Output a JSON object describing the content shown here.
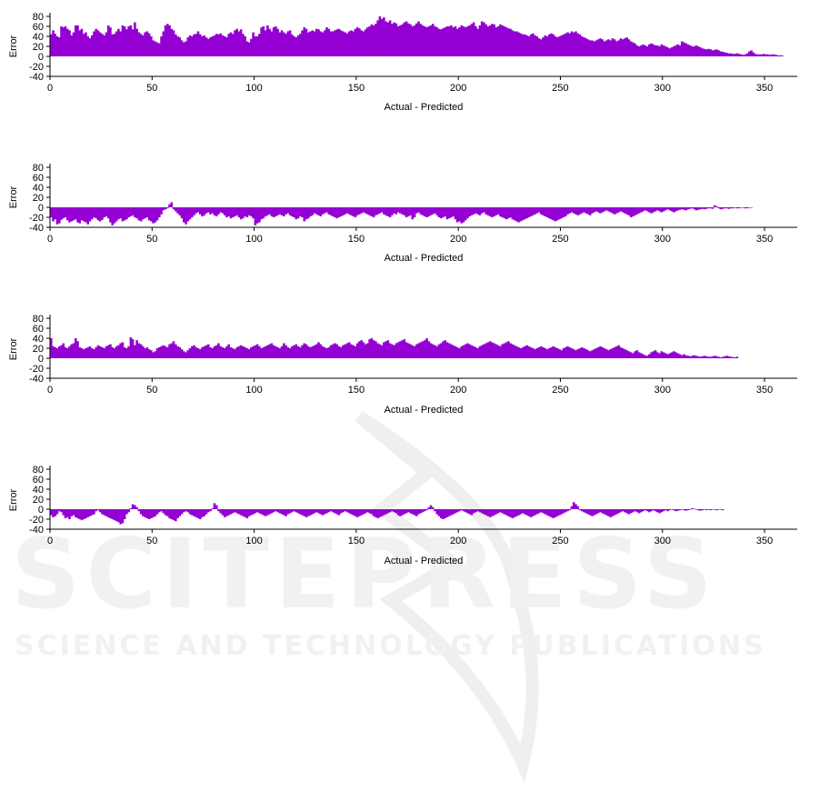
{
  "watermark": {
    "title": "SCITEPRESS",
    "subtitle": "SCIENCE AND TECHNOLOGY PUBLICATIONS"
  },
  "chart_data": [
    {
      "type": "bar",
      "xlabel": "Actual - Predicted",
      "ylabel": "Error",
      "xlim": [
        0,
        366
      ],
      "ylim": [
        -40,
        80
      ],
      "xticks": [
        0,
        50,
        100,
        150,
        200,
        250,
        300,
        350
      ],
      "yticks": [
        -40,
        -20,
        0,
        20,
        40,
        60,
        80
      ],
      "color": "#9400d3",
      "x_start": 0,
      "values": [
        44,
        52,
        45,
        40,
        38,
        60,
        58,
        60,
        55,
        52,
        42,
        48,
        62,
        62,
        52,
        55,
        45,
        48,
        40,
        36,
        42,
        50,
        55,
        52,
        48,
        45,
        42,
        48,
        62,
        58,
        44,
        45,
        50,
        55,
        50,
        62,
        60,
        54,
        60,
        62,
        54,
        68,
        55,
        48,
        45,
        42,
        48,
        50,
        46,
        40,
        32,
        30,
        28,
        26,
        40,
        50,
        62,
        65,
        62,
        55,
        52,
        44,
        40,
        38,
        32,
        28,
        30,
        38,
        42,
        40,
        44,
        45,
        50,
        44,
        40,
        42,
        38,
        35,
        38,
        40,
        42,
        45,
        44,
        46,
        42,
        40,
        38,
        45,
        48,
        45,
        52,
        55,
        50,
        54,
        45,
        40,
        30,
        28,
        35,
        48,
        40,
        40,
        45,
        58,
        60,
        52,
        62,
        55,
        50,
        58,
        60,
        55,
        48,
        52,
        48,
        45,
        50,
        52,
        44,
        40,
        38,
        42,
        45,
        52,
        58,
        55,
        48,
        50,
        52,
        50,
        55,
        54,
        50,
        48,
        52,
        58,
        55,
        50,
        50,
        52,
        54,
        55,
        52,
        50,
        48,
        46,
        50,
        52,
        50,
        55,
        58,
        56,
        52,
        50,
        54,
        58,
        60,
        64,
        62,
        65,
        72,
        80,
        75,
        78,
        70,
        68,
        72,
        65,
        68,
        66,
        60,
        62,
        64,
        68,
        70,
        66,
        64,
        60,
        62,
        66,
        70,
        65,
        62,
        60,
        58,
        60,
        62,
        65,
        60,
        58,
        55,
        54,
        56,
        58,
        60,
        60,
        62,
        58,
        60,
        55,
        58,
        62,
        60,
        58,
        60,
        62,
        65,
        68,
        60,
        55,
        62,
        70,
        68,
        64,
        60,
        62,
        65,
        64,
        58,
        60,
        64,
        62,
        60,
        58,
        56,
        55,
        52,
        50,
        50,
        48,
        46,
        44,
        44,
        42,
        40,
        44,
        46,
        42,
        40,
        36,
        34,
        38,
        42,
        40,
        44,
        46,
        44,
        40,
        38,
        40,
        42,
        44,
        46,
        48,
        46,
        50,
        48,
        50,
        46,
        44,
        40,
        38,
        36,
        34,
        32,
        32,
        30,
        32,
        34,
        36,
        34,
        30,
        32,
        34,
        32,
        36,
        34,
        30,
        32,
        36,
        34,
        36,
        38,
        34,
        30,
        28,
        26,
        22,
        20,
        22,
        24,
        22,
        20,
        24,
        26,
        24,
        22,
        22,
        20,
        24,
        22,
        20,
        18,
        16,
        18,
        20,
        22,
        24,
        22,
        30,
        28,
        26,
        24,
        22,
        20,
        20,
        22,
        20,
        18,
        16,
        15,
        14,
        15,
        14,
        12,
        13,
        14,
        12,
        10,
        9,
        8,
        7,
        6,
        6,
        5,
        5,
        6,
        5,
        4,
        3,
        4,
        6,
        10,
        12,
        8,
        5,
        4,
        4,
        4,
        5,
        4,
        4,
        3,
        4,
        4,
        3,
        2,
        2,
        2
      ]
    },
    {
      "type": "bar",
      "xlabel": "Actual - Predicted",
      "ylabel": "Error",
      "xlim": [
        0,
        366
      ],
      "ylim": [
        -40,
        80
      ],
      "xticks": [
        0,
        50,
        100,
        150,
        200,
        250,
        300,
        350
      ],
      "yticks": [
        -40,
        -20,
        0,
        20,
        40,
        60,
        80
      ],
      "color": "#9400d3",
      "x_start": 0,
      "values": [
        -20,
        -28,
        -24,
        -34,
        -32,
        -25,
        -22,
        -20,
        -26,
        -30,
        -28,
        -26,
        -24,
        -30,
        -32,
        -26,
        -28,
        -30,
        -34,
        -28,
        -24,
        -20,
        -22,
        -26,
        -28,
        -25,
        -20,
        -18,
        -22,
        -30,
        -36,
        -32,
        -28,
        -24,
        -22,
        -28,
        -26,
        -24,
        -20,
        -18,
        -16,
        -20,
        -22,
        -26,
        -28,
        -24,
        -22,
        -20,
        -26,
        -28,
        -32,
        -30,
        -26,
        -20,
        -14,
        -6,
        -4,
        -2,
        6,
        10,
        -4,
        -8,
        -12,
        -16,
        -22,
        -30,
        -34,
        -28,
        -24,
        -20,
        -16,
        -12,
        -10,
        -14,
        -18,
        -16,
        -12,
        -10,
        -14,
        -12,
        -16,
        -18,
        -14,
        -10,
        -12,
        -16,
        -20,
        -18,
        -22,
        -20,
        -18,
        -16,
        -20,
        -24,
        -22,
        -18,
        -20,
        -16,
        -18,
        -22,
        -36,
        -32,
        -30,
        -24,
        -22,
        -18,
        -16,
        -14,
        -18,
        -20,
        -18,
        -16,
        -14,
        -16,
        -18,
        -14,
        -12,
        -16,
        -18,
        -20,
        -24,
        -22,
        -18,
        -20,
        -28,
        -24,
        -22,
        -18,
        -16,
        -12,
        -14,
        -16,
        -18,
        -14,
        -12,
        -10,
        -14,
        -16,
        -18,
        -20,
        -22,
        -20,
        -18,
        -16,
        -14,
        -12,
        -14,
        -16,
        -18,
        -20,
        -16,
        -14,
        -12,
        -10,
        -12,
        -14,
        -16,
        -18,
        -20,
        -16,
        -14,
        -12,
        -10,
        -14,
        -16,
        -18,
        -20,
        -16,
        -12,
        -14,
        -10,
        -12,
        -14,
        -16,
        -20,
        -18,
        -16,
        -24,
        -20,
        -12,
        -10,
        -14,
        -16,
        -18,
        -20,
        -18,
        -16,
        -14,
        -12,
        -16,
        -20,
        -22,
        -20,
        -18,
        -24,
        -22,
        -20,
        -18,
        -24,
        -30,
        -28,
        -32,
        -30,
        -26,
        -22,
        -18,
        -16,
        -14,
        -12,
        -14,
        -16,
        -12,
        -10,
        -14,
        -16,
        -18,
        -20,
        -18,
        -16,
        -14,
        -18,
        -20,
        -22,
        -24,
        -22,
        -20,
        -24,
        -26,
        -28,
        -30,
        -28,
        -26,
        -24,
        -22,
        -20,
        -18,
        -16,
        -14,
        -12,
        -10,
        -14,
        -16,
        -18,
        -20,
        -22,
        -24,
        -26,
        -28,
        -26,
        -24,
        -22,
        -20,
        -18,
        -14,
        -12,
        -10,
        -12,
        -14,
        -16,
        -14,
        -12,
        -10,
        -12,
        -14,
        -16,
        -12,
        -10,
        -8,
        -10,
        -12,
        -10,
        -8,
        -6,
        -8,
        -10,
        -12,
        -14,
        -12,
        -10,
        -8,
        -10,
        -12,
        -14,
        -16,
        -20,
        -18,
        -16,
        -14,
        -12,
        -10,
        -8,
        -6,
        -8,
        -10,
        -12,
        -10,
        -8,
        -6,
        -8,
        -10,
        -8,
        -6,
        -4,
        -6,
        -8,
        -10,
        -8,
        -6,
        -5,
        -4,
        -5,
        -6,
        -4,
        -3,
        -2,
        -4,
        -6,
        -5,
        -4,
        -3,
        -4,
        -3,
        -2,
        -2,
        -3,
        4,
        2,
        -2,
        -4,
        -3,
        -2,
        -2,
        -3,
        -2,
        -2,
        -1,
        -2,
        -2,
        -1,
        -1,
        -2,
        -2,
        -1,
        -1
      ]
    },
    {
      "type": "bar",
      "xlabel": "Actual - Predicted",
      "ylabel": "Error",
      "xlim": [
        0,
        366
      ],
      "ylim": [
        -40,
        80
      ],
      "xticks": [
        0,
        50,
        100,
        150,
        200,
        250,
        300,
        350
      ],
      "yticks": [
        -40,
        -20,
        0,
        20,
        40,
        60,
        80
      ],
      "color": "#9400d3",
      "x_start": 0,
      "values": [
        40,
        24,
        22,
        20,
        24,
        26,
        30,
        22,
        20,
        24,
        28,
        30,
        40,
        34,
        22,
        20,
        18,
        20,
        22,
        24,
        20,
        18,
        22,
        26,
        24,
        22,
        20,
        24,
        26,
        28,
        22,
        20,
        24,
        26,
        30,
        32,
        22,
        20,
        24,
        42,
        38,
        26,
        36,
        30,
        28,
        24,
        20,
        22,
        18,
        16,
        12,
        14,
        20,
        22,
        24,
        26,
        24,
        22,
        28,
        30,
        34,
        28,
        24,
        22,
        18,
        14,
        12,
        16,
        20,
        24,
        26,
        22,
        20,
        18,
        22,
        24,
        26,
        28,
        22,
        20,
        24,
        26,
        30,
        24,
        22,
        20,
        24,
        28,
        22,
        20,
        18,
        22,
        24,
        26,
        24,
        22,
        20,
        18,
        22,
        24,
        26,
        28,
        24,
        20,
        22,
        24,
        26,
        28,
        30,
        26,
        24,
        22,
        20,
        24,
        30,
        26,
        22,
        20,
        24,
        26,
        28,
        24,
        22,
        26,
        30,
        28,
        24,
        22,
        24,
        26,
        28,
        32,
        28,
        24,
        22,
        20,
        22,
        26,
        28,
        30,
        28,
        24,
        22,
        26,
        28,
        30,
        32,
        28,
        26,
        24,
        30,
        34,
        36,
        32,
        28,
        30,
        38,
        40,
        36,
        34,
        30,
        28,
        26,
        32,
        34,
        36,
        30,
        28,
        26,
        30,
        32,
        34,
        36,
        38,
        32,
        30,
        28,
        26,
        24,
        28,
        30,
        32,
        34,
        36,
        40,
        34,
        30,
        28,
        26,
        24,
        28,
        30,
        34,
        36,
        32,
        30,
        28,
        26,
        24,
        22,
        20,
        24,
        26,
        28,
        30,
        28,
        26,
        24,
        22,
        20,
        24,
        26,
        28,
        30,
        32,
        34,
        32,
        30,
        28,
        26,
        24,
        28,
        30,
        32,
        34,
        30,
        28,
        26,
        24,
        22,
        20,
        22,
        24,
        26,
        24,
        22,
        20,
        18,
        20,
        22,
        24,
        22,
        20,
        18,
        20,
        22,
        24,
        22,
        20,
        18,
        16,
        20,
        22,
        24,
        22,
        20,
        18,
        16,
        18,
        20,
        22,
        20,
        18,
        16,
        14,
        16,
        18,
        20,
        22,
        24,
        22,
        20,
        18,
        16,
        18,
        20,
        22,
        24,
        26,
        22,
        20,
        18,
        16,
        14,
        12,
        10,
        14,
        16,
        12,
        10,
        8,
        6,
        5,
        8,
        12,
        14,
        16,
        12,
        10,
        14,
        12,
        10,
        8,
        10,
        12,
        14,
        12,
        10,
        8,
        6,
        8,
        6,
        5,
        4,
        5,
        6,
        5,
        4,
        3,
        4,
        5,
        4,
        3,
        3,
        4,
        5,
        4,
        3,
        2,
        3,
        4,
        5,
        4,
        3,
        2,
        2,
        3
      ]
    },
    {
      "type": "bar",
      "xlabel": "Actual - Predicted",
      "ylabel": "Error",
      "xlim": [
        0,
        366
      ],
      "ylim": [
        -40,
        80
      ],
      "xticks": [
        0,
        50,
        100,
        150,
        200,
        250,
        300,
        350
      ],
      "yticks": [
        -40,
        -20,
        0,
        20,
        40,
        60,
        80
      ],
      "color": "#9400d3",
      "x_start": 0,
      "values": [
        -12,
        -16,
        -14,
        -10,
        -4,
        -6,
        -12,
        -18,
        -16,
        -20,
        -14,
        -12,
        -16,
        -18,
        -20,
        -22,
        -20,
        -18,
        -16,
        -14,
        -12,
        -10,
        -4,
        -2,
        -6,
        -10,
        -12,
        -14,
        -16,
        -18,
        -20,
        -22,
        -24,
        -26,
        -30,
        -28,
        -20,
        -10,
        -6,
        2,
        10,
        8,
        4,
        -4,
        -10,
        -14,
        -16,
        -18,
        -20,
        -18,
        -16,
        -14,
        -10,
        -6,
        -4,
        -8,
        -12,
        -14,
        -18,
        -20,
        -22,
        -24,
        -18,
        -14,
        -10,
        -6,
        -4,
        -6,
        -10,
        -12,
        -14,
        -16,
        -18,
        -20,
        -16,
        -14,
        -10,
        -6,
        -4,
        2,
        12,
        8,
        -4,
        -8,
        -12,
        -16,
        -14,
        -12,
        -10,
        -8,
        -6,
        -8,
        -10,
        -12,
        -14,
        -16,
        -18,
        -14,
        -12,
        -10,
        -8,
        -6,
        -8,
        -10,
        -12,
        -14,
        -12,
        -10,
        -8,
        -6,
        -4,
        -6,
        -8,
        -10,
        -12,
        -14,
        -10,
        -8,
        -6,
        -4,
        -6,
        -8,
        -10,
        -12,
        -14,
        -16,
        -14,
        -12,
        -10,
        -8,
        -6,
        -8,
        -10,
        -12,
        -10,
        -8,
        -6,
        -4,
        -6,
        -8,
        -10,
        -12,
        -8,
        -6,
        -4,
        -6,
        -8,
        -10,
        -12,
        -14,
        -16,
        -14,
        -12,
        -10,
        -8,
        -6,
        -8,
        -10,
        -14,
        -16,
        -18,
        -16,
        -14,
        -12,
        -10,
        -8,
        -6,
        -4,
        -6,
        -8,
        -12,
        -14,
        -12,
        -10,
        -8,
        -6,
        -8,
        -10,
        -12,
        -14,
        -10,
        -8,
        -6,
        -4,
        -2,
        4,
        8,
        4,
        -4,
        -10,
        -14,
        -18,
        -20,
        -18,
        -16,
        -14,
        -12,
        -10,
        -8,
        -6,
        -4,
        -2,
        -4,
        -6,
        -8,
        -10,
        -12,
        -8,
        -6,
        -4,
        -6,
        -8,
        -10,
        -12,
        -14,
        -16,
        -14,
        -12,
        -10,
        -8,
        -6,
        -8,
        -10,
        -12,
        -14,
        -16,
        -18,
        -16,
        -14,
        -12,
        -10,
        -8,
        -10,
        -12,
        -14,
        -16,
        -14,
        -12,
        -10,
        -8,
        -6,
        -8,
        -10,
        -12,
        -14,
        -16,
        -18,
        -16,
        -14,
        -12,
        -10,
        -8,
        -6,
        -4,
        -2,
        6,
        14,
        10,
        6,
        -2,
        -4,
        -6,
        -8,
        -10,
        -12,
        -14,
        -12,
        -10,
        -8,
        -6,
        -8,
        -10,
        -12,
        -14,
        -16,
        -14,
        -12,
        -10,
        -8,
        -6,
        -4,
        -6,
        -8,
        -10,
        -8,
        -6,
        -4,
        -6,
        -8,
        -6,
        -4,
        -2,
        -4,
        -6,
        -4,
        -2,
        -4,
        -6,
        -8,
        -6,
        -4,
        -2,
        -4,
        -2,
        -1,
        -2,
        -4,
        -3,
        -2,
        -1,
        -2,
        -3,
        -2,
        -1,
        2,
        1,
        -1,
        -2,
        -3,
        -2,
        -1,
        -2,
        -1,
        -2,
        -1,
        -1,
        -2,
        -1,
        -1,
        -2
      ]
    }
  ]
}
